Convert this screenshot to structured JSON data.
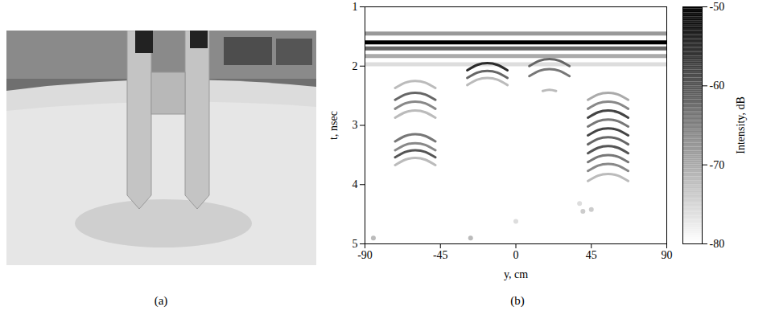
{
  "photo": {
    "label": "(a)"
  },
  "chart_data": {
    "type": "heatmap",
    "label": "(b)",
    "xlabel": "y, cm",
    "ylabel": "t, nsec",
    "xlim": [
      -90,
      90
    ],
    "xticks": [
      -90,
      -45,
      0,
      45,
      90
    ],
    "ylim": [
      5,
      1
    ],
    "yticks": [
      1,
      2,
      3,
      4,
      5
    ],
    "colorbar": {
      "label": "Intensity, dB",
      "range": [
        -80,
        -50
      ],
      "ticks": [
        -50,
        -60,
        -70,
        -80
      ]
    },
    "bands": [
      {
        "t": 1.45,
        "intensity": -68
      },
      {
        "t": 1.6,
        "intensity": -50
      },
      {
        "t": 1.7,
        "intensity": -62
      },
      {
        "t": 1.83,
        "intensity": -70
      },
      {
        "t": 1.97,
        "intensity": -76
      }
    ],
    "arcs": [
      {
        "intensity": -72,
        "points": [
          [
            -72,
            2.37
          ],
          [
            -66,
            2.28
          ],
          [
            -60,
            2.25
          ],
          [
            -54,
            2.28
          ],
          [
            -48,
            2.37
          ]
        ]
      },
      {
        "intensity": -62,
        "points": [
          [
            -72,
            2.57
          ],
          [
            -66,
            2.48
          ],
          [
            -60,
            2.45
          ],
          [
            -54,
            2.48
          ],
          [
            -48,
            2.57
          ]
        ]
      },
      {
        "intensity": -66,
        "points": [
          [
            -72,
            2.72
          ],
          [
            -66,
            2.63
          ],
          [
            -60,
            2.6
          ],
          [
            -54,
            2.63
          ],
          [
            -48,
            2.72
          ]
        ]
      },
      {
        "intensity": -72,
        "points": [
          [
            -72,
            2.87
          ],
          [
            -66,
            2.78
          ],
          [
            -60,
            2.75
          ],
          [
            -54,
            2.78
          ],
          [
            -48,
            2.87
          ]
        ]
      },
      {
        "intensity": -64,
        "points": [
          [
            -72,
            3.27
          ],
          [
            -66,
            3.18
          ],
          [
            -60,
            3.15
          ],
          [
            -54,
            3.18
          ],
          [
            -48,
            3.27
          ]
        ]
      },
      {
        "intensity": -66,
        "points": [
          [
            -72,
            3.42
          ],
          [
            -66,
            3.33
          ],
          [
            -60,
            3.3
          ],
          [
            -54,
            3.33
          ],
          [
            -48,
            3.42
          ]
        ]
      },
      {
        "intensity": -60,
        "points": [
          [
            -72,
            3.54
          ],
          [
            -66,
            3.45
          ],
          [
            -60,
            3.42
          ],
          [
            -54,
            3.45
          ],
          [
            -48,
            3.54
          ]
        ]
      },
      {
        "intensity": -72,
        "points": [
          [
            -72,
            3.67
          ],
          [
            -66,
            3.58
          ],
          [
            -60,
            3.55
          ],
          [
            -54,
            3.58
          ],
          [
            -48,
            3.67
          ]
        ]
      },
      {
        "intensity": -55,
        "points": [
          [
            -29,
            2.07
          ],
          [
            -23,
            1.98
          ],
          [
            -17,
            1.95
          ],
          [
            -11,
            1.98
          ],
          [
            -5,
            2.07
          ]
        ]
      },
      {
        "intensity": -62,
        "points": [
          [
            -29,
            2.2
          ],
          [
            -23,
            2.11
          ],
          [
            -17,
            2.08
          ],
          [
            -11,
            2.11
          ],
          [
            -5,
            2.2
          ]
        ]
      },
      {
        "intensity": -72,
        "points": [
          [
            -29,
            2.32
          ],
          [
            -23,
            2.23
          ],
          [
            -17,
            2.2
          ],
          [
            -11,
            2.23
          ],
          [
            -5,
            2.32
          ]
        ]
      },
      {
        "intensity": -62,
        "points": [
          [
            8,
            2.0
          ],
          [
            14,
            1.91
          ],
          [
            20,
            1.88
          ],
          [
            26,
            1.91
          ],
          [
            32,
            2.0
          ]
        ]
      },
      {
        "intensity": -64,
        "points": [
          [
            8,
            2.17
          ],
          [
            14,
            2.08
          ],
          [
            20,
            2.05
          ],
          [
            26,
            2.08
          ],
          [
            32,
            2.17
          ]
        ]
      },
      {
        "intensity": -72,
        "points": [
          [
            16,
            2.42
          ],
          [
            20,
            2.4
          ],
          [
            24,
            2.42
          ]
        ]
      },
      {
        "intensity": -70,
        "points": [
          [
            43,
            2.57
          ],
          [
            49,
            2.48
          ],
          [
            55,
            2.45
          ],
          [
            61,
            2.48
          ],
          [
            67,
            2.57
          ]
        ]
      },
      {
        "intensity": -66,
        "points": [
          [
            43,
            2.72
          ],
          [
            49,
            2.63
          ],
          [
            55,
            2.6
          ],
          [
            61,
            2.63
          ],
          [
            67,
            2.72
          ]
        ]
      },
      {
        "intensity": -58,
        "points": [
          [
            43,
            2.87
          ],
          [
            49,
            2.78
          ],
          [
            55,
            2.75
          ],
          [
            61,
            2.78
          ],
          [
            67,
            2.87
          ]
        ]
      },
      {
        "intensity": -64,
        "points": [
          [
            43,
            3.02
          ],
          [
            49,
            2.93
          ],
          [
            55,
            2.9
          ],
          [
            61,
            2.93
          ],
          [
            67,
            3.02
          ]
        ]
      },
      {
        "intensity": -58,
        "points": [
          [
            43,
            3.17
          ],
          [
            49,
            3.08
          ],
          [
            55,
            3.05
          ],
          [
            61,
            3.08
          ],
          [
            67,
            3.17
          ]
        ]
      },
      {
        "intensity": -62,
        "points": [
          [
            43,
            3.32
          ],
          [
            49,
            3.23
          ],
          [
            55,
            3.2
          ],
          [
            61,
            3.23
          ],
          [
            67,
            3.32
          ]
        ]
      },
      {
        "intensity": -60,
        "points": [
          [
            43,
            3.47
          ],
          [
            49,
            3.38
          ],
          [
            55,
            3.35
          ],
          [
            61,
            3.38
          ],
          [
            67,
            3.47
          ]
        ]
      },
      {
        "intensity": -64,
        "points": [
          [
            43,
            3.62
          ],
          [
            49,
            3.53
          ],
          [
            55,
            3.5
          ],
          [
            61,
            3.53
          ],
          [
            67,
            3.62
          ]
        ]
      },
      {
        "intensity": -66,
        "points": [
          [
            43,
            3.77
          ],
          [
            49,
            3.68
          ],
          [
            55,
            3.65
          ],
          [
            61,
            3.68
          ],
          [
            67,
            3.77
          ]
        ]
      },
      {
        "intensity": -72,
        "points": [
          [
            43,
            3.94
          ],
          [
            49,
            3.85
          ],
          [
            55,
            3.82
          ],
          [
            61,
            3.85
          ],
          [
            67,
            3.94
          ]
        ]
      }
    ],
    "spots": [
      [
        -85,
        4.9,
        -72
      ],
      [
        -27,
        4.9,
        -72
      ],
      [
        0,
        4.62,
        -76
      ],
      [
        38,
        4.32,
        -76
      ],
      [
        40,
        4.45,
        -74
      ],
      [
        45,
        4.42,
        -74
      ]
    ]
  }
}
